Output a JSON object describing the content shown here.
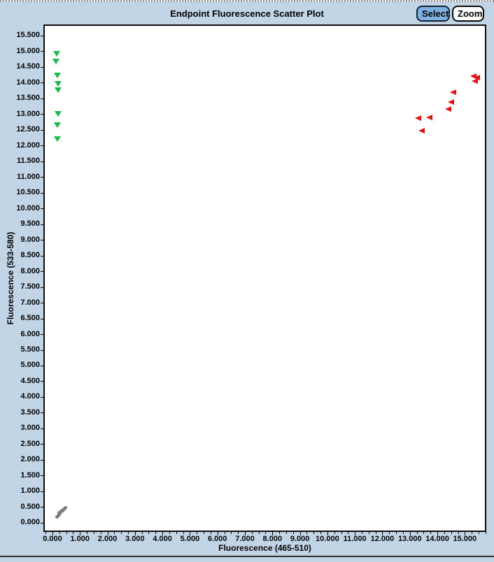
{
  "toolbar": {
    "select_label": "Select",
    "zoom_label": "Zoom",
    "select_button_color": "#7db1e2",
    "zoom_button_color": "#fdfdfd"
  },
  "window_background": "#c2d5e7",
  "chart_data": {
    "type": "scatter",
    "title": "Endpoint Fluorescence Scatter Plot",
    "xlabel": "Fluorescence (465-510)",
    "ylabel": "Fluorescence (533-580)",
    "xlim": [
      -0.33,
      15.78
    ],
    "ylim": [
      -0.28,
      15.86
    ],
    "grid": false,
    "legend": "none",
    "x_tick_labels": [
      "0.000",
      "1.000",
      "2.000",
      "3.000",
      "4.000",
      "5.000",
      "6.000",
      "7.000",
      "8.000",
      "9.000",
      "10.000",
      "11.000",
      "12.000",
      "13.000",
      "14.000",
      "15.000"
    ],
    "x_minor_tick_step": 0.25,
    "y_tick_labels": [
      "0.000",
      "0.500",
      "1.000",
      "1.500",
      "2.000",
      "2.500",
      "3.000",
      "3.500",
      "4.000",
      "4.500",
      "5.000",
      "5.500",
      "6.000",
      "6.500",
      "7.000",
      "7.500",
      "8.000",
      "8.500",
      "9.000",
      "9.500",
      "10.000",
      "10.500",
      "11.000",
      "11.500",
      "12.000",
      "12.500",
      "13.000",
      "13.500",
      "14.000",
      "14.500",
      "15.000",
      "15.500"
    ],
    "series": [
      {
        "name": "green-cluster",
        "marker": "triangle-down",
        "color": "#1cb84e",
        "points": [
          [
            0.15,
            14.93
          ],
          [
            0.12,
            14.68
          ],
          [
            0.18,
            14.24
          ],
          [
            0.2,
            13.96
          ],
          [
            0.21,
            13.78
          ],
          [
            0.2,
            13.01
          ],
          [
            0.17,
            12.65
          ],
          [
            0.18,
            12.22
          ]
        ]
      },
      {
        "name": "red-cluster",
        "marker": "triangle-left",
        "color": "#de1412",
        "points": [
          [
            15.3,
            14.22
          ],
          [
            15.42,
            14.17
          ],
          [
            15.36,
            14.05
          ],
          [
            14.55,
            13.7
          ],
          [
            14.48,
            13.4
          ],
          [
            14.38,
            13.16
          ],
          [
            13.28,
            12.88
          ],
          [
            13.69,
            12.9
          ],
          [
            13.42,
            12.48
          ]
        ]
      },
      {
        "name": "unclustered-gray",
        "marker": "dot",
        "color": "#7d7d7d",
        "points": [
          [
            0.16,
            0.22
          ],
          [
            0.2,
            0.26
          ],
          [
            0.23,
            0.3
          ],
          [
            0.26,
            0.32
          ],
          [
            0.24,
            0.35
          ],
          [
            0.29,
            0.36
          ],
          [
            0.32,
            0.4
          ],
          [
            0.35,
            0.42
          ],
          [
            0.4,
            0.46
          ],
          [
            0.45,
            0.5
          ]
        ]
      }
    ]
  }
}
